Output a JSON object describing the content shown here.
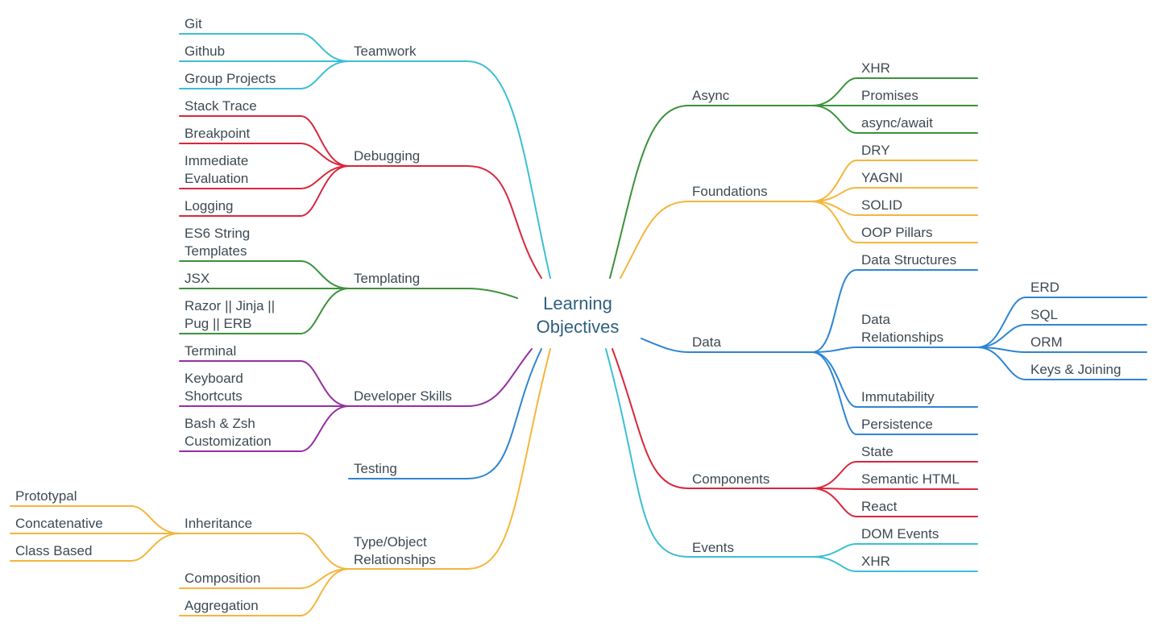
{
  "title": "Learning Objectives",
  "colors": {
    "teal": "#3bbfd3",
    "red": "#d9273c",
    "green": "#3b923a",
    "purple": "#952fa1",
    "blue": "#2e85d2",
    "orange": "#f4b63c"
  },
  "left": {
    "teamwork": {
      "label": "Teamwork",
      "children": [
        "Git",
        "Github",
        "Group Projects"
      ]
    },
    "debugging": {
      "label": "Debugging",
      "children": [
        "Stack Trace",
        "Breakpoint",
        "Immediate Evaluation",
        "Logging"
      ]
    },
    "templating": {
      "label": "Templating",
      "children": [
        "ES6 String Templates",
        "JSX",
        "Razor || Jinja || Pug || ERB"
      ]
    },
    "devskills": {
      "label": "Developer Skills",
      "children": [
        "Terminal",
        "Keyboard Shortcuts",
        "Bash & Zsh Customization"
      ]
    },
    "testing": {
      "label": "Testing"
    },
    "typeobj": {
      "label": "Type/Object Relationships",
      "inheritance": {
        "label": "Inheritance",
        "children": [
          "Prototypal",
          "Concatenative",
          "Class Based"
        ]
      },
      "others": [
        "Composition",
        "Aggregation"
      ]
    }
  },
  "right": {
    "async": {
      "label": "Async",
      "children": [
        "XHR",
        "Promises",
        "async/await"
      ]
    },
    "foundations": {
      "label": "Foundations",
      "children": [
        "DRY",
        "YAGNI",
        "SOLID",
        "OOP Pillars"
      ]
    },
    "data": {
      "label": "Data",
      "children": [
        "Data Structures",
        "Data Relationships",
        "Immutability",
        "Persistence"
      ],
      "relationships": [
        "ERD",
        "SQL",
        "ORM",
        "Keys & Joining"
      ]
    },
    "components": {
      "label": "Components",
      "children": [
        "State",
        "Semantic HTML",
        "React"
      ]
    },
    "events": {
      "label": "Events",
      "children": [
        "DOM Events",
        "XHR"
      ]
    }
  }
}
